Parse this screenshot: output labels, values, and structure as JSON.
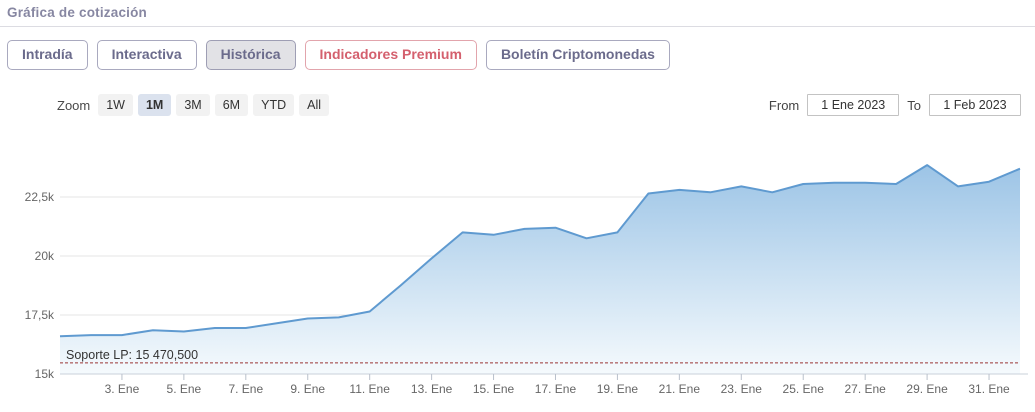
{
  "header": {
    "title": "Gráfica de cotización"
  },
  "tabs": [
    {
      "label": "Intradía",
      "active": false
    },
    {
      "label": "Interactiva",
      "active": false
    },
    {
      "label": "Histórica",
      "active": true
    },
    {
      "label": "Indicadores Premium",
      "active": false,
      "premium": true
    },
    {
      "label": "Boletín Criptomonedas",
      "active": false
    }
  ],
  "range_selector": {
    "zoom_label": "Zoom",
    "buttons": [
      {
        "label": "1W",
        "active": false
      },
      {
        "label": "1M",
        "active": true
      },
      {
        "label": "3M",
        "active": false
      },
      {
        "label": "6M",
        "active": false
      },
      {
        "label": "YTD",
        "active": false
      },
      {
        "label": "All",
        "active": false
      }
    ],
    "from_label": "From",
    "from_value": "1 Ene 2023",
    "to_label": "To",
    "to_value": "1 Feb 2023"
  },
  "chart_data": {
    "type": "area",
    "title": "",
    "xlabel": "",
    "ylabel": "",
    "x_days": [
      1,
      2,
      3,
      4,
      5,
      6,
      7,
      8,
      9,
      10,
      11,
      12,
      13,
      14,
      15,
      16,
      17,
      18,
      19,
      20,
      21,
      22,
      23,
      24,
      25,
      26,
      27,
      28,
      29,
      30,
      31,
      32
    ],
    "dates": [
      "1 Ene",
      "2 Ene",
      "3 Ene",
      "4 Ene",
      "5 Ene",
      "6 Ene",
      "7 Ene",
      "8 Ene",
      "9 Ene",
      "10 Ene",
      "11 Ene",
      "12 Ene",
      "13 Ene",
      "14 Ene",
      "15 Ene",
      "16 Ene",
      "17 Ene",
      "18 Ene",
      "19 Ene",
      "20 Ene",
      "21 Ene",
      "22 Ene",
      "23 Ene",
      "24 Ene",
      "25 Ene",
      "26 Ene",
      "27 Ene",
      "28 Ene",
      "29 Ene",
      "30 Ene",
      "31 Ene",
      "1 Feb"
    ],
    "values": [
      16600,
      16650,
      16650,
      16850,
      16800,
      16950,
      16950,
      17150,
      17350,
      17400,
      17650,
      18750,
      19900,
      21000,
      20900,
      21150,
      21200,
      20750,
      21000,
      22650,
      22800,
      22700,
      22950,
      22700,
      23050,
      23100,
      23100,
      23050,
      23850,
      22950,
      23150,
      23700
    ],
    "ylim": [
      15000,
      24960
    ],
    "yticks": [
      {
        "value": 15000,
        "label": "15k"
      },
      {
        "value": 17500,
        "label": "17,5k"
      },
      {
        "value": 20000,
        "label": "20k"
      },
      {
        "value": 22500,
        "label": "22,5k"
      }
    ],
    "xticks": [
      {
        "day": 3,
        "label": "3. Ene"
      },
      {
        "day": 5,
        "label": "5. Ene"
      },
      {
        "day": 7,
        "label": "7. Ene"
      },
      {
        "day": 9,
        "label": "9. Ene"
      },
      {
        "day": 11,
        "label": "11. Ene"
      },
      {
        "day": 13,
        "label": "13. Ene"
      },
      {
        "day": 15,
        "label": "15. Ene"
      },
      {
        "day": 17,
        "label": "17. Ene"
      },
      {
        "day": 19,
        "label": "19. Ene"
      },
      {
        "day": 21,
        "label": "21. Ene"
      },
      {
        "day": 23,
        "label": "23. Ene"
      },
      {
        "day": 25,
        "label": "25. Ene"
      },
      {
        "day": 27,
        "label": "27. Ene"
      },
      {
        "day": 29,
        "label": "29. Ene"
      },
      {
        "day": 31,
        "label": "31. Ene"
      }
    ],
    "annotation": {
      "label": "Soporte LP: 15 470,500",
      "value": 15470.5
    },
    "grid": true,
    "legend": false
  },
  "colors": {
    "line": "#5f9ad0",
    "area_top": "#9cc4e6",
    "area_bottom": "#f5fafd",
    "grid": "#e6e6e6",
    "axis": "#c9d0da",
    "tick": "#b9c0cb",
    "tick_label": "#666666",
    "support_line": "#9b3535",
    "annotation_text": "#333333"
  }
}
